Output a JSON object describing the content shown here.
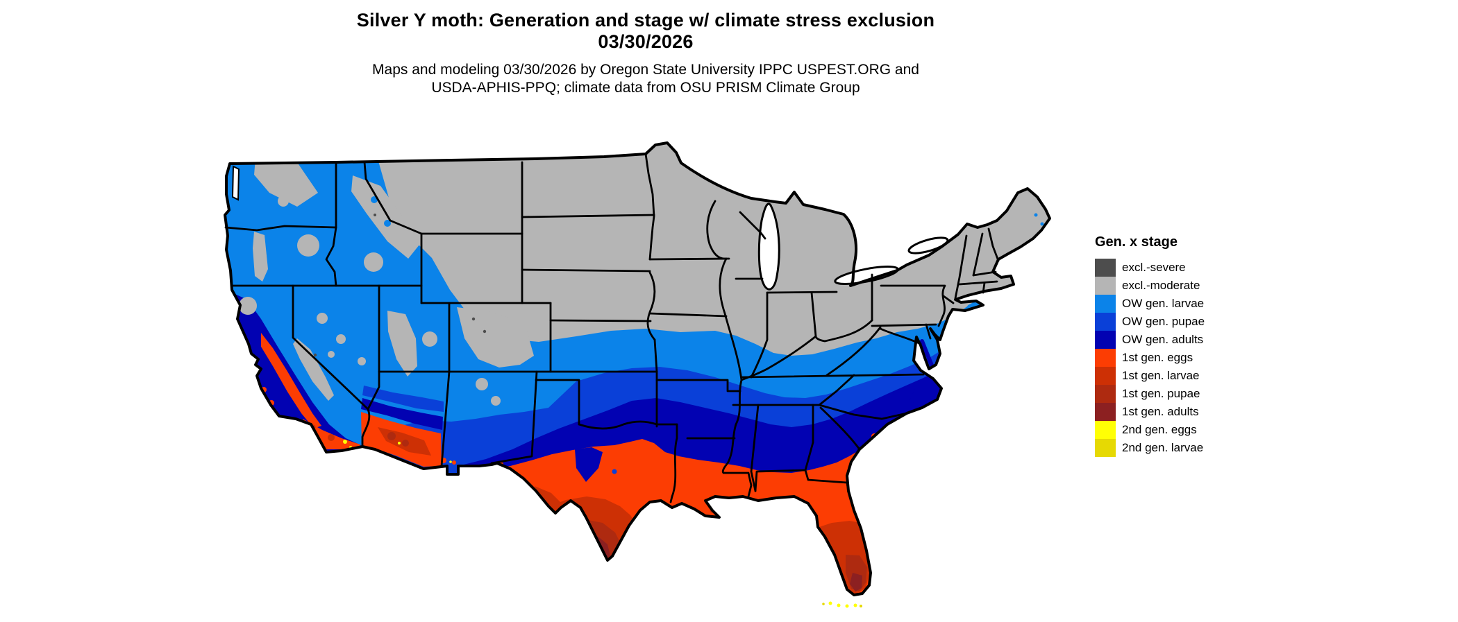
{
  "header": {
    "title_line1": "Silver Y moth: Generation and stage w/ climate stress exclusion",
    "title_line2": "03/30/2026",
    "subtitle_line1": "Maps and modeling 03/30/2026 by Oregon State University IPPC USPEST.ORG and",
    "subtitle_line2": "USDA-APHIS-PPQ; climate data from OSU PRISM Climate Group"
  },
  "legend": {
    "title": "Gen. x stage",
    "items": [
      {
        "label": "excl.-severe",
        "color": "#4d4d4d"
      },
      {
        "label": "excl.-moderate",
        "color": "#b5b5b5"
      },
      {
        "label": "OW gen. larvae",
        "color": "#0b83e9"
      },
      {
        "label": "OW gen. pupae",
        "color": "#0a40d8"
      },
      {
        "label": "OW gen. adults",
        "color": "#0202b2"
      },
      {
        "label": "1st gen. eggs",
        "color": "#fc3d03"
      },
      {
        "label": "1st gen. larvae",
        "color": "#cd3005"
      },
      {
        "label": "1st gen. pupae",
        "color": "#ae2a10"
      },
      {
        "label": "1st gen. adults",
        "color": "#8c2021"
      },
      {
        "label": "2nd gen. eggs",
        "color": "#ffff05"
      },
      {
        "label": "2nd gen. larvae",
        "color": "#e6d903"
      }
    ]
  },
  "map": {
    "land_default_color": "#b9b9b9",
    "water_color": "#ffffff",
    "boundary_color": "#000000"
  }
}
